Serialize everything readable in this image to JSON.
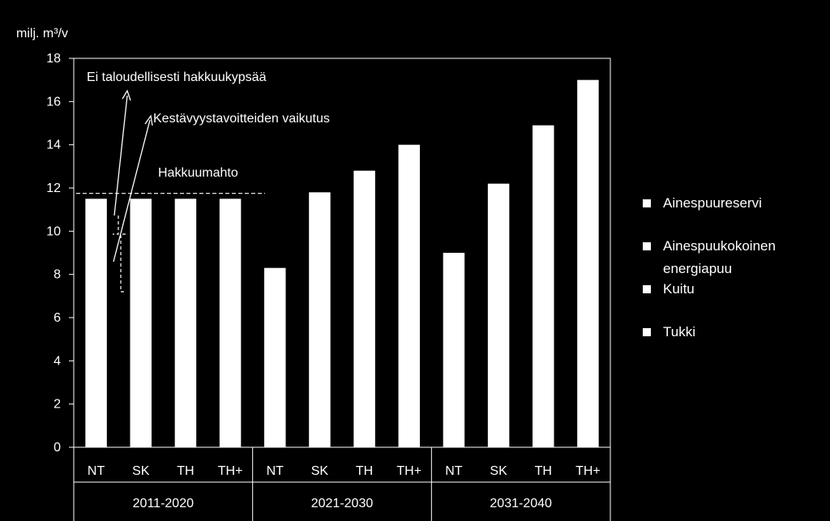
{
  "chart_data": {
    "type": "bar",
    "ylabel": "milj. m³/v",
    "ylim": [
      0,
      18
    ],
    "yticks": [
      "0",
      "2",
      "4",
      "6",
      "8",
      "10",
      "12",
      "14",
      "16",
      "18"
    ],
    "groups": [
      {
        "label": "2011-2020",
        "categories": [
          "NT",
          "SK",
          "TH",
          "TH+"
        ],
        "values": [
          11.5,
          11.5,
          11.5,
          11.5
        ]
      },
      {
        "label": "2021-2030",
        "categories": [
          "NT",
          "SK",
          "TH",
          "TH+"
        ],
        "values": [
          8.3,
          11.8,
          12.8,
          14.0
        ]
      },
      {
        "label": "2031-2040",
        "categories": [
          "NT",
          "SK",
          "TH",
          "TH+"
        ],
        "values": [
          9.0,
          12.2,
          14.9,
          17.0
        ]
      }
    ],
    "legend": [
      "Ainespuureservi",
      "Ainespuukokoinen energiapuu",
      "Kuitu",
      "Tukki"
    ],
    "legend_position": "right",
    "annotations": {
      "not_mature": "Ei taloudellisesti hakkuukypsää",
      "sustainability": "Kestävyystavoitteiden vaikutus",
      "harvest_volume": "Hakkuumahto"
    },
    "harvest_volume_value": 11.75,
    "grid": false
  },
  "colors": {
    "background": "#000000",
    "bars": "#ffffff",
    "text": "#ffffff"
  }
}
